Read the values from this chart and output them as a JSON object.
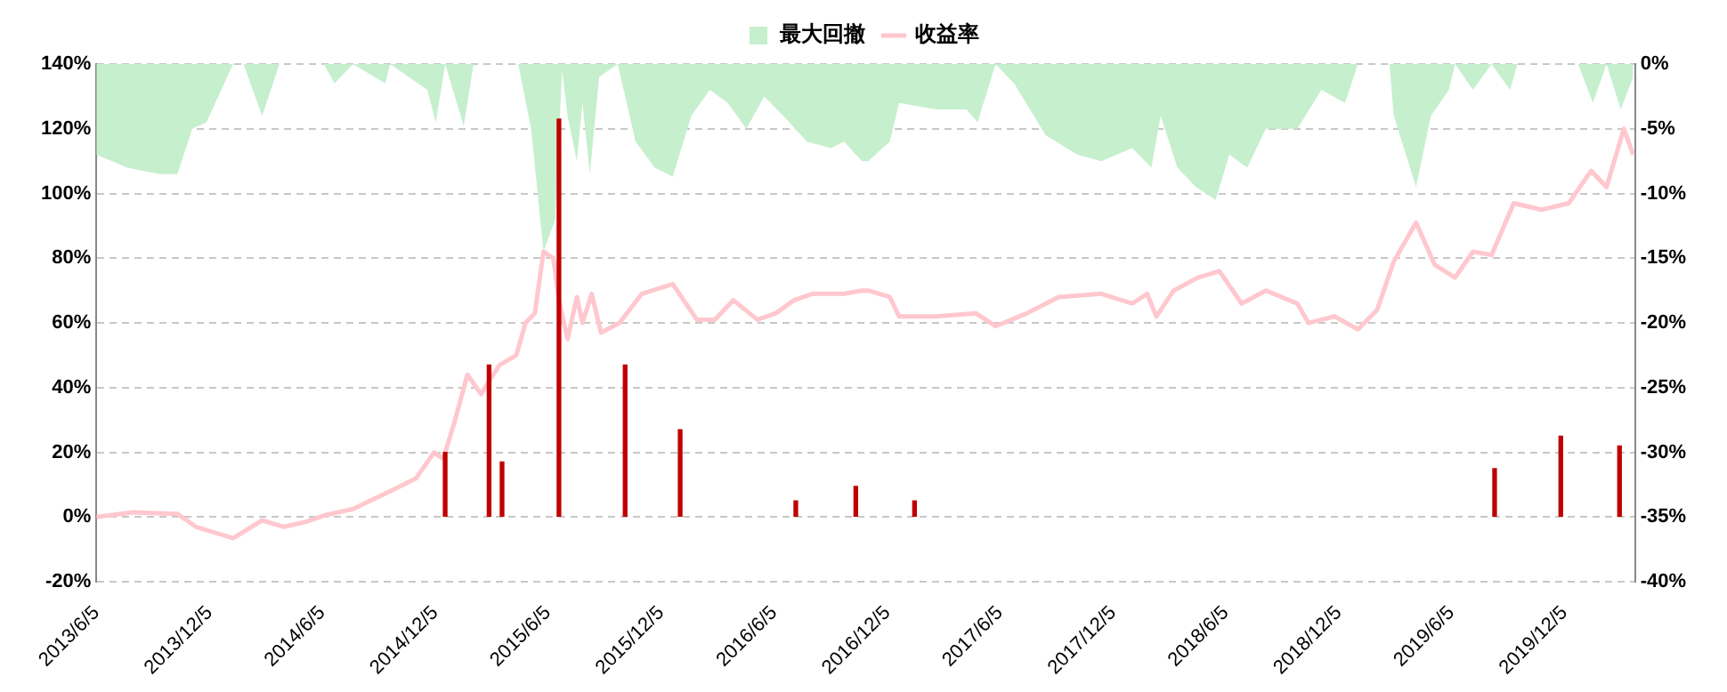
{
  "chart_data": {
    "type": "line",
    "legend": "top",
    "grid": "y",
    "marker": "none",
    "line_style": "solid",
    "xlim": [
      "2013-06-05",
      "2020-03-28"
    ],
    "xticks": [
      {
        "value": "2013-06-05",
        "label": "2013/6/5"
      },
      {
        "value": "2013-12-05",
        "label": "2013/12/5"
      },
      {
        "value": "2014-06-05",
        "label": "2014/6/5"
      },
      {
        "value": "2014-12-05",
        "label": "2014/12/5"
      },
      {
        "value": "2015-06-05",
        "label": "2015/6/5"
      },
      {
        "value": "2015-12-05",
        "label": "2015/12/5"
      },
      {
        "value": "2016-06-05",
        "label": "2016/6/5"
      },
      {
        "value": "2016-12-05",
        "label": "2016/12/5"
      },
      {
        "value": "2017-06-05",
        "label": "2017/6/5"
      },
      {
        "value": "2017-12-05",
        "label": "2017/12/5"
      },
      {
        "value": "2018-06-05",
        "label": "2018/6/5"
      },
      {
        "value": "2018-12-05",
        "label": "2018/12/5"
      },
      {
        "value": "2019-06-05",
        "label": "2019/6/5"
      },
      {
        "value": "2019-12-05",
        "label": "2019/12/5"
      }
    ],
    "ylim": [
      -20,
      140
    ],
    "yticks": [
      {
        "value": -20,
        "label": "-20%"
      },
      {
        "value": 0,
        "label": "0%"
      },
      {
        "value": 20,
        "label": "20%"
      },
      {
        "value": 40,
        "label": "40%"
      },
      {
        "value": 60,
        "label": "60%"
      },
      {
        "value": 80,
        "label": "80%"
      },
      {
        "value": 100,
        "label": "100%"
      },
      {
        "value": 120,
        "label": "120%"
      },
      {
        "value": 140,
        "label": "140%"
      }
    ],
    "y2lim": [
      -40,
      0
    ],
    "y2ticks": [
      {
        "value": -40,
        "label": "-40%"
      },
      {
        "value": -35,
        "label": "-35%"
      },
      {
        "value": -30,
        "label": "-30%"
      },
      {
        "value": -25,
        "label": "-25%"
      },
      {
        "value": -20,
        "label": "-20%"
      },
      {
        "value": -15,
        "label": "-15%"
      },
      {
        "value": -10,
        "label": "-10%"
      },
      {
        "value": -5,
        "label": "-5%"
      },
      {
        "value": 0,
        "label": "0%"
      }
    ],
    "series": [
      {
        "name": "最大回撤",
        "type": "area",
        "axis": "y2",
        "color": "#c6efce",
        "x": [
          "2013-06-05",
          "2013-07-25",
          "2013-09-15",
          "2013-10-14",
          "2013-11-07",
          "2013-11-30",
          "2014-01-12",
          "2014-01-29",
          "2014-02-28",
          "2014-03-28",
          "2014-06-08",
          "2014-06-25",
          "2014-07-25",
          "2014-09-15",
          "2014-09-23",
          "2014-11-22",
          "2014-12-06",
          "2014-12-21",
          "2015-01-20",
          "2015-02-05",
          "2015-04-18",
          "2015-05-09",
          "2015-05-29",
          "2015-06-17",
          "2015-06-28",
          "2015-07-07",
          "2015-07-22",
          "2015-07-31",
          "2015-08-12",
          "2015-08-27",
          "2015-09-26",
          "2015-10-25",
          "2015-11-25",
          "2015-12-24",
          "2016-01-23",
          "2016-02-22",
          "2016-03-22",
          "2016-04-21",
          "2016-05-20",
          "2016-06-20",
          "2016-07-28",
          "2016-09-05",
          "2016-09-26",
          "2016-10-25",
          "2016-11-04",
          "2016-12-09",
          "2016-12-24",
          "2017-02-22",
          "2017-04-12",
          "2017-04-30",
          "2017-05-29",
          "2017-06-28",
          "2017-08-18",
          "2017-10-08",
          "2017-11-16",
          "2018-01-05",
          "2018-02-05",
          "2018-02-20",
          "2018-03-19",
          "2018-04-18",
          "2018-05-20",
          "2018-06-11",
          "2018-07-10",
          "2018-08-09",
          "2018-09-29",
          "2018-11-07",
          "2018-12-15",
          "2019-01-05",
          "2019-02-25",
          "2019-03-04",
          "2019-04-09",
          "2019-05-03",
          "2019-06-01",
          "2019-06-11",
          "2019-07-10",
          "2019-08-09",
          "2019-09-08",
          "2019-09-20",
          "2019-12-27",
          "2020-01-20",
          "2020-02-11",
          "2020-03-05",
          "2020-03-25"
        ],
        "values": [
          -7,
          -8,
          -8.5,
          -8.5,
          -5,
          -4.5,
          0,
          0,
          -4,
          0,
          0,
          -1.5,
          0,
          -1.5,
          0,
          -2,
          -4.5,
          0,
          -4.8,
          0,
          0,
          -5,
          -14.5,
          -12,
          -0.5,
          -4,
          -7.5,
          -3,
          -8.5,
          -1,
          0,
          -6,
          -8,
          -8.7,
          -4,
          -2,
          -3,
          -5,
          -2.5,
          -4,
          -6,
          -6.5,
          -6,
          -7.5,
          -7.5,
          -6,
          -3,
          -3.5,
          -3.5,
          -4.5,
          0,
          -1.5,
          -5.5,
          -7,
          -7.5,
          -6.5,
          -8,
          -4,
          -8,
          -9.5,
          -10.5,
          -7,
          -8,
          -5,
          -5,
          -2,
          -3,
          0,
          0,
          -4,
          -9.5,
          -4,
          -2,
          0,
          -2,
          0,
          -2,
          0,
          0,
          -3,
          0,
          -3.5,
          -1
        ]
      },
      {
        "name": "收益率",
        "color": "#ffc7ce",
        "x": [
          "2013-06-05",
          "2013-08-03",
          "2013-10-14",
          "2013-11-13",
          "2014-01-12",
          "2014-02-28",
          "2014-04-04",
          "2014-05-09",
          "2014-06-08",
          "2014-07-25",
          "2014-09-23",
          "2014-11-04",
          "2014-12-03",
          "2014-12-18",
          "2015-01-06",
          "2015-01-26",
          "2015-02-17",
          "2015-03-02",
          "2015-03-19",
          "2015-04-15",
          "2015-04-30",
          "2015-05-15",
          "2015-05-29",
          "2015-06-14",
          "2015-06-23",
          "2015-07-07",
          "2015-07-22",
          "2015-07-31",
          "2015-08-15",
          "2015-08-30",
          "2015-09-29",
          "2015-11-04",
          "2015-12-24",
          "2016-02-01",
          "2016-03-01",
          "2016-03-31",
          "2016-05-09",
          "2016-06-08",
          "2016-07-07",
          "2016-08-06",
          "2016-09-26",
          "2016-10-25",
          "2016-11-04",
          "2016-12-09",
          "2016-12-24",
          "2017-02-22",
          "2017-04-27",
          "2017-05-29",
          "2017-07-19",
          "2017-09-08",
          "2017-11-16",
          "2018-01-05",
          "2018-01-29",
          "2018-02-13",
          "2018-03-13",
          "2018-04-21",
          "2018-05-26",
          "2018-07-01",
          "2018-08-09",
          "2018-09-29",
          "2018-10-17",
          "2018-11-28",
          "2019-01-05",
          "2019-02-05",
          "2019-03-04",
          "2019-04-09",
          "2019-05-09",
          "2019-06-11",
          "2019-07-10",
          "2019-08-09",
          "2019-09-14",
          "2019-10-29",
          "2019-12-12",
          "2020-01-17",
          "2020-02-11",
          "2020-03-10",
          "2020-03-25"
        ],
        "values": [
          0,
          1.5,
          1,
          -3,
          -6.5,
          -1,
          -3,
          -1.5,
          0.5,
          2.5,
          8,
          12,
          20,
          18,
          30,
          44,
          38,
          42,
          47,
          50,
          60,
          63,
          82,
          80,
          67,
          55,
          68,
          60,
          69,
          57,
          60,
          69,
          72,
          61,
          61,
          67,
          61,
          63,
          67,
          69,
          69,
          70,
          70,
          68,
          62,
          62,
          63,
          59,
          63,
          68,
          69,
          66,
          69,
          62,
          70,
          74,
          76,
          66,
          70,
          66,
          60,
          62,
          58,
          64,
          79,
          91,
          78,
          74,
          82,
          81,
          97,
          95,
          97,
          107,
          102,
          120,
          112
        ]
      },
      {
        "type": "bar",
        "color": "#c00000",
        "x": [
          "2014-12-21",
          "2015-03-02",
          "2015-03-23",
          "2015-06-23",
          "2015-10-08",
          "2016-01-05",
          "2016-07-10",
          "2016-10-15",
          "2017-01-18",
          "2019-08-14",
          "2019-11-29",
          "2020-03-03"
        ],
        "values": [
          20,
          47,
          17,
          123,
          47,
          27,
          5,
          9.5,
          5,
          15,
          25,
          22
        ]
      }
    ]
  }
}
